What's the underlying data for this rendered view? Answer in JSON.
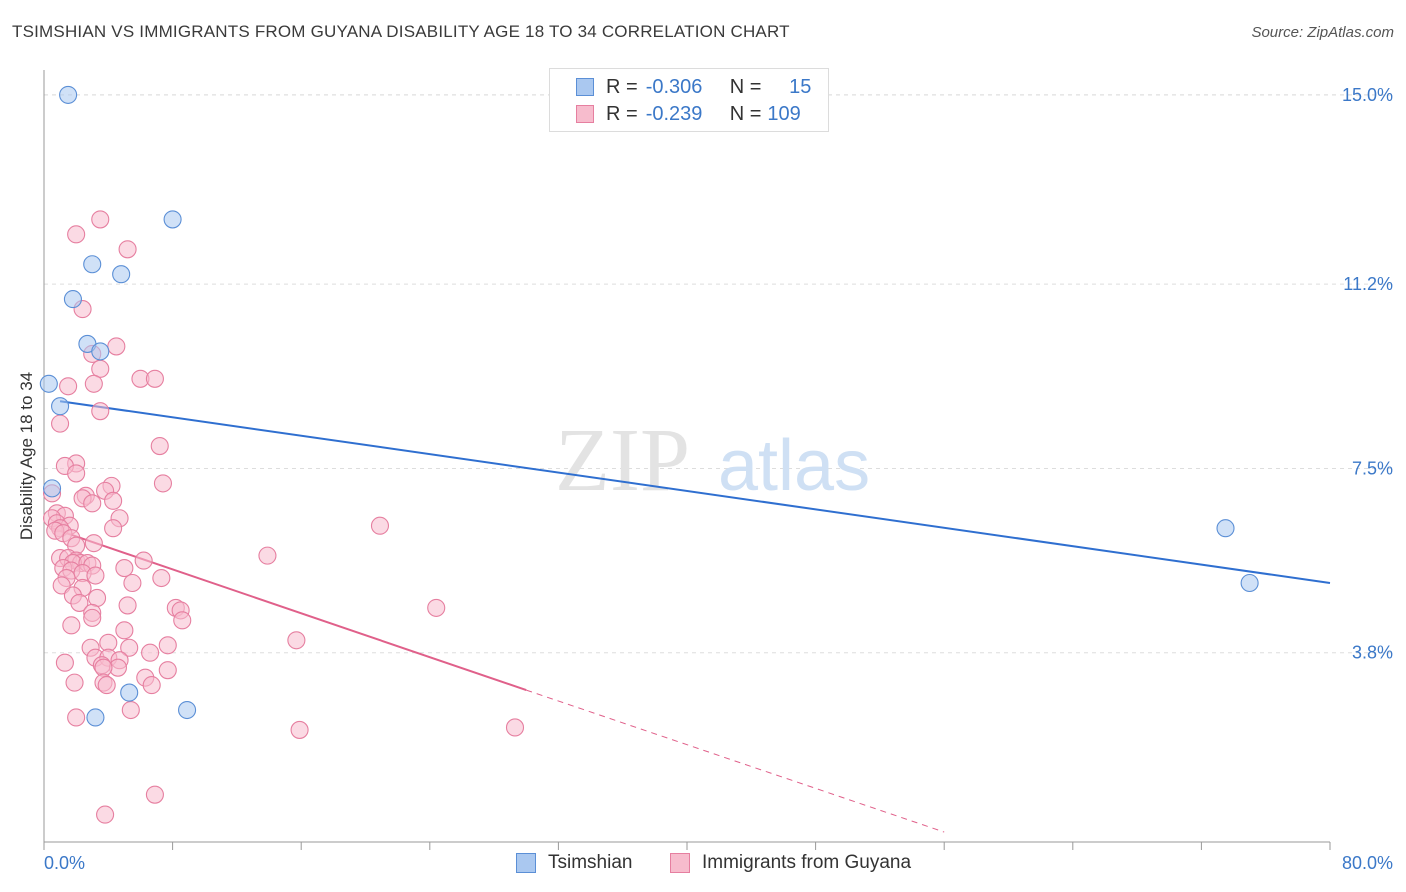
{
  "title": "TSIMSHIAN VS IMMIGRANTS FROM GUYANA DISABILITY AGE 18 TO 34 CORRELATION CHART",
  "source": "Source: ZipAtlas.com",
  "watermark": {
    "zip": "ZIP",
    "atlas": "atlas"
  },
  "legend": {
    "rows": [
      {
        "r_label": "R =",
        "r_value": "-0.306",
        "n_label": "N =",
        "n_value": "15"
      },
      {
        "r_label": "R =",
        "r_value": "-0.239",
        "n_label": "N =",
        "n_value": "109"
      }
    ]
  },
  "colors": {
    "tsimshian_fill": "#aac8f0",
    "tsimshian_stroke": "#5b8fd6",
    "tsimshian_line": "#2f6fd0",
    "guyana_fill": "#f7bccd",
    "guyana_stroke": "#e67fa0",
    "guyana_line": "#e0608a",
    "tick_text": "#3b78c8",
    "grid": "#dddddd"
  },
  "chart_data": {
    "type": "scatter",
    "title": "TSIMSHIAN VS IMMIGRANTS FROM GUYANA DISABILITY AGE 18 TO 34 CORRELATION CHART",
    "xlabel": "",
    "ylabel": "Disability Age 18 to 34",
    "xlim": [
      0,
      80
    ],
    "ylim": [
      0,
      15.5
    ],
    "x_tick_labels": [
      "0.0%",
      "80.0%"
    ],
    "y_ticks": [
      {
        "value": 3.8,
        "label": "3.8%"
      },
      {
        "value": 7.5,
        "label": "7.5%"
      },
      {
        "value": 11.2,
        "label": "11.2%"
      },
      {
        "value": 15.0,
        "label": "15.0%"
      }
    ],
    "series": [
      {
        "name": "Tsimshian",
        "r": -0.306,
        "n": 15,
        "trend": {
          "x0": 1.0,
          "y0": 8.85,
          "x1": 80.0,
          "y1": 5.2
        },
        "points": [
          [
            1.5,
            15.0
          ],
          [
            8.0,
            12.5
          ],
          [
            3.0,
            11.6
          ],
          [
            4.8,
            11.4
          ],
          [
            1.8,
            10.9
          ],
          [
            2.7,
            10.0
          ],
          [
            3.5,
            9.85
          ],
          [
            0.3,
            9.2
          ],
          [
            1.0,
            8.75
          ],
          [
            0.5,
            7.1
          ],
          [
            73.5,
            6.3
          ],
          [
            75.0,
            5.2
          ],
          [
            5.3,
            3.0
          ],
          [
            3.2,
            2.5
          ],
          [
            8.9,
            2.65
          ]
        ]
      },
      {
        "name": "Immigrants from Guyana",
        "r": -0.239,
        "n": 109,
        "trend": {
          "x0": 0.5,
          "y0": 6.3,
          "x1": 30.0,
          "y1": 3.05,
          "dash_to_x": 56.0,
          "dash_to_y": 0.2
        },
        "points": [
          [
            3.5,
            12.5
          ],
          [
            2.0,
            12.2
          ],
          [
            5.2,
            11.9
          ],
          [
            2.4,
            10.7
          ],
          [
            4.5,
            9.95
          ],
          [
            3.0,
            9.8
          ],
          [
            3.5,
            9.5
          ],
          [
            6.0,
            9.3
          ],
          [
            6.9,
            9.3
          ],
          [
            3.1,
            9.2
          ],
          [
            1.5,
            9.15
          ],
          [
            3.5,
            8.65
          ],
          [
            1.0,
            8.4
          ],
          [
            7.2,
            7.95
          ],
          [
            2.0,
            7.6
          ],
          [
            1.3,
            7.55
          ],
          [
            2.0,
            7.4
          ],
          [
            7.4,
            7.2
          ],
          [
            4.2,
            7.15
          ],
          [
            3.8,
            7.05
          ],
          [
            0.5,
            7.0
          ],
          [
            2.6,
            6.95
          ],
          [
            2.4,
            6.9
          ],
          [
            4.3,
            6.85
          ],
          [
            3.0,
            6.8
          ],
          [
            0.8,
            6.6
          ],
          [
            1.3,
            6.55
          ],
          [
            0.5,
            6.5
          ],
          [
            4.7,
            6.5
          ],
          [
            0.8,
            6.4
          ],
          [
            1.6,
            6.35
          ],
          [
            1.0,
            6.3
          ],
          [
            0.7,
            6.25
          ],
          [
            4.3,
            6.3
          ],
          [
            20.9,
            6.35
          ],
          [
            1.2,
            6.2
          ],
          [
            1.7,
            6.1
          ],
          [
            3.1,
            6.0
          ],
          [
            2.0,
            5.95
          ],
          [
            13.9,
            5.75
          ],
          [
            1.0,
            5.7
          ],
          [
            1.5,
            5.7
          ],
          [
            2.0,
            5.65
          ],
          [
            2.3,
            5.6
          ],
          [
            1.8,
            5.6
          ],
          [
            2.7,
            5.6
          ],
          [
            3.0,
            5.55
          ],
          [
            1.2,
            5.5
          ],
          [
            6.2,
            5.65
          ],
          [
            5.0,
            5.5
          ],
          [
            1.7,
            5.45
          ],
          [
            2.4,
            5.4
          ],
          [
            3.2,
            5.35
          ],
          [
            1.4,
            5.3
          ],
          [
            7.3,
            5.3
          ],
          [
            5.5,
            5.2
          ],
          [
            1.1,
            5.15
          ],
          [
            2.4,
            5.1
          ],
          [
            1.8,
            4.95
          ],
          [
            3.3,
            4.9
          ],
          [
            2.2,
            4.8
          ],
          [
            5.2,
            4.75
          ],
          [
            8.2,
            4.7
          ],
          [
            24.4,
            4.7
          ],
          [
            8.5,
            4.65
          ],
          [
            3.0,
            4.6
          ],
          [
            3.0,
            4.5
          ],
          [
            8.6,
            4.45
          ],
          [
            1.7,
            4.35
          ],
          [
            5.0,
            4.25
          ],
          [
            15.7,
            4.05
          ],
          [
            4.0,
            4.0
          ],
          [
            2.9,
            3.9
          ],
          [
            5.3,
            3.9
          ],
          [
            7.7,
            3.95
          ],
          [
            3.2,
            3.7
          ],
          [
            4.0,
            3.7
          ],
          [
            4.7,
            3.65
          ],
          [
            1.3,
            3.6
          ],
          [
            6.6,
            3.8
          ],
          [
            3.6,
            3.55
          ],
          [
            4.6,
            3.5
          ],
          [
            3.7,
            3.5
          ],
          [
            7.7,
            3.45
          ],
          [
            6.3,
            3.3
          ],
          [
            1.9,
            3.2
          ],
          [
            3.7,
            3.2
          ],
          [
            3.9,
            3.15
          ],
          [
            6.7,
            3.15
          ],
          [
            5.4,
            2.65
          ],
          [
            2.0,
            2.5
          ],
          [
            15.9,
            2.25
          ],
          [
            29.3,
            2.3
          ],
          [
            6.9,
            0.95
          ],
          [
            3.8,
            0.55
          ]
        ]
      }
    ],
    "legend_placement": "top-center"
  },
  "bottom_legend": [
    {
      "label": "Tsimshian"
    },
    {
      "label": "Immigrants from Guyana"
    }
  ]
}
